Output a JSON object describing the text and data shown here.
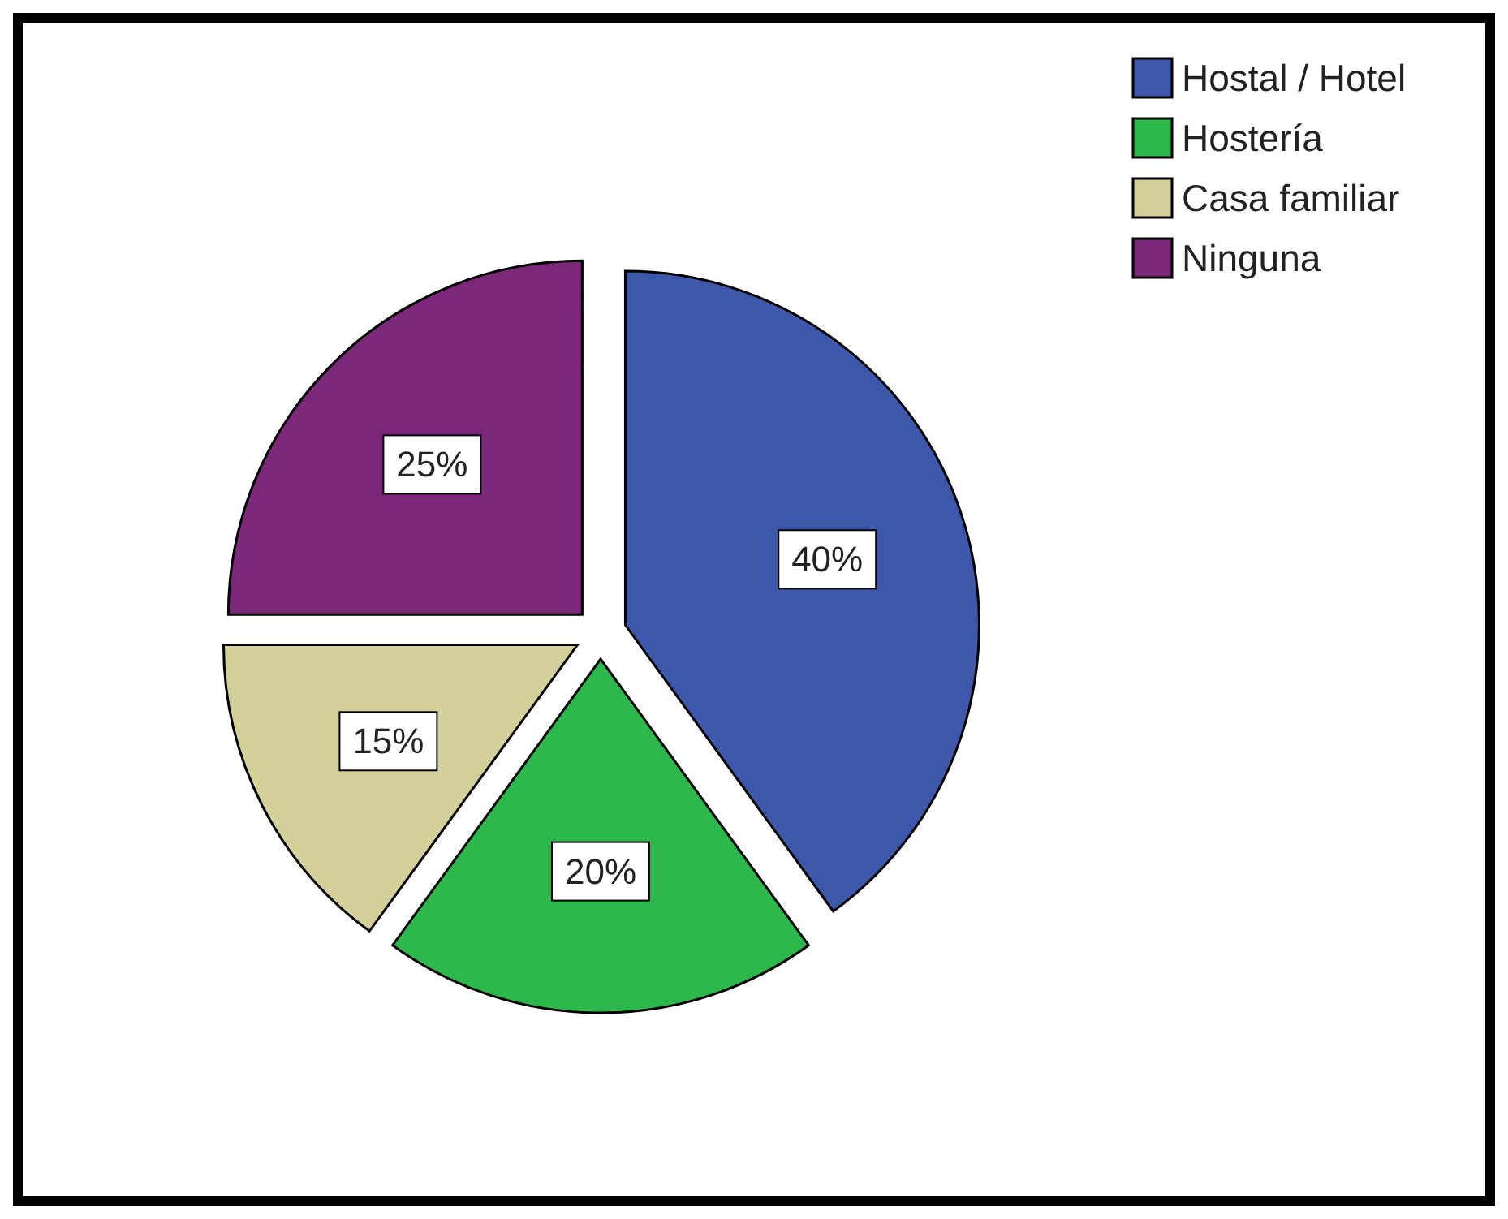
{
  "chart_data": {
    "type": "pie",
    "categories": [
      "Hostal / Hotel",
      "Hostería",
      "Casa familiar",
      "Ninguna"
    ],
    "values": [
      40,
      20,
      15,
      25
    ],
    "colors": [
      "#3d57ab",
      "#2db84b",
      "#d5cf9a",
      "#7b2878"
    ],
    "value_labels": [
      "40%",
      "20%",
      "15%",
      "25%"
    ],
    "legend": "top right"
  }
}
